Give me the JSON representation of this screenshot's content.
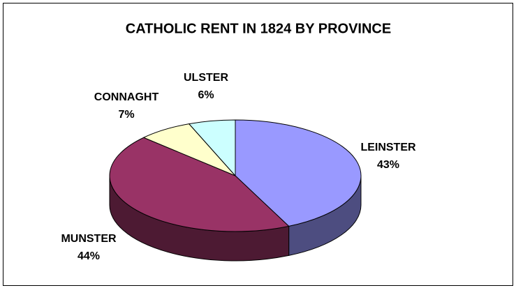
{
  "chart_data": {
    "type": "pie",
    "title": "CATHOLIC RENT IN 1824 BY PROVINCE",
    "categories": [
      "LEINSTER",
      "MUNSTER",
      "CONNAGHT",
      "ULSTER"
    ],
    "values": [
      43,
      44,
      7,
      6
    ],
    "value_labels": [
      "43%",
      "44%",
      "7%",
      "6%"
    ],
    "colors": [
      "#9999ff",
      "#993366",
      "#ffffcc",
      "#ccffff"
    ]
  }
}
